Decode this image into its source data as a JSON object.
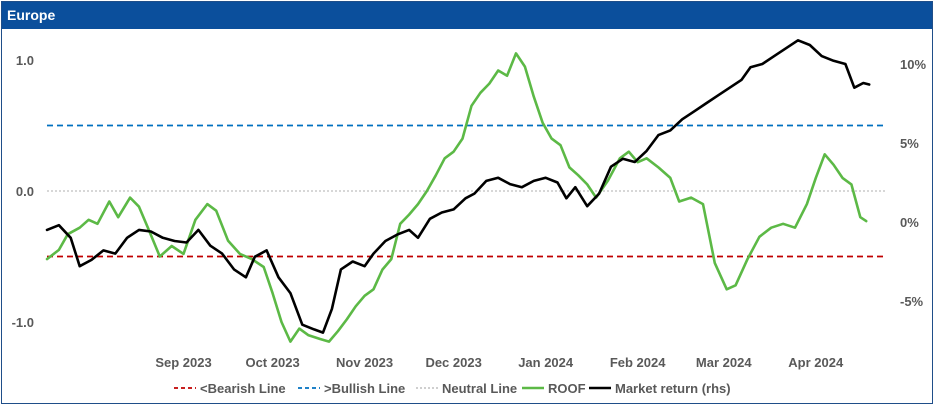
{
  "panel": {
    "title": "Europe"
  },
  "colors": {
    "title_bar": "#0b4f9c",
    "bearish": "#c00000",
    "bullish": "#0070c0",
    "neutral": "#bfbfbf",
    "roof": "#5cb946",
    "market": "#000000"
  },
  "chart_data": {
    "type": "line",
    "x_range": [
      "2023-08-01",
      "2024-05-10"
    ],
    "x_ticks": [
      "Sep 2023",
      "Oct 2023",
      "Nov 2023",
      "Dec 2023",
      "Jan 2024",
      "Feb 2024",
      "Mar 2024",
      "Apr 2024"
    ],
    "y_left": {
      "ticks": [
        "1.0",
        "0.0",
        "-1.0"
      ],
      "values": [
        1.0,
        0.0,
        -1.0
      ],
      "ylim": [
        -1.25,
        1.1
      ]
    },
    "y_right": {
      "ticks": [
        "10%",
        "5%",
        "0%",
        "-5%"
      ],
      "values": [
        10,
        5,
        0,
        -5
      ],
      "ylim": [
        -8.2,
        12.0
      ]
    },
    "reference_lines": [
      {
        "name": "<Bearish Line",
        "value": -0.5,
        "style": "dashed",
        "color": "#c00000"
      },
      {
        "name": ">Bullish Line",
        "value": 0.5,
        "style": "dashed",
        "color": "#0070c0"
      },
      {
        "name": "Neutral Line",
        "value": 0.0,
        "style": "dotted",
        "color": "#bfbfbf"
      }
    ],
    "series": [
      {
        "name": "ROOF",
        "axis": "left",
        "color": "#5cb946",
        "points": [
          [
            "2023-08-01",
            -0.52
          ],
          [
            "2023-08-05",
            -0.45
          ],
          [
            "2023-08-08",
            -0.33
          ],
          [
            "2023-08-12",
            -0.28
          ],
          [
            "2023-08-15",
            -0.22
          ],
          [
            "2023-08-18",
            -0.25
          ],
          [
            "2023-08-22",
            -0.08
          ],
          [
            "2023-08-25",
            -0.2
          ],
          [
            "2023-08-29",
            -0.05
          ],
          [
            "2023-09-01",
            -0.12
          ],
          [
            "2023-09-04",
            -0.28
          ],
          [
            "2023-09-08",
            -0.5
          ],
          [
            "2023-09-12",
            -0.42
          ],
          [
            "2023-09-16",
            -0.48
          ],
          [
            "2023-09-20",
            -0.22
          ],
          [
            "2023-09-24",
            -0.1
          ],
          [
            "2023-09-27",
            -0.15
          ],
          [
            "2023-10-01",
            -0.38
          ],
          [
            "2023-10-05",
            -0.48
          ],
          [
            "2023-10-09",
            -0.52
          ],
          [
            "2023-10-13",
            -0.58
          ],
          [
            "2023-10-16",
            -0.78
          ],
          [
            "2023-10-19",
            -1.0
          ],
          [
            "2023-10-22",
            -1.15
          ],
          [
            "2023-10-25",
            -1.05
          ],
          [
            "2023-10-28",
            -1.1
          ],
          [
            "2023-11-01",
            -1.13
          ],
          [
            "2023-11-04",
            -1.15
          ],
          [
            "2023-11-07",
            -1.07
          ],
          [
            "2023-11-10",
            -0.98
          ],
          [
            "2023-11-13",
            -0.88
          ],
          [
            "2023-11-16",
            -0.8
          ],
          [
            "2023-11-19",
            -0.75
          ],
          [
            "2023-11-22",
            -0.6
          ],
          [
            "2023-11-25",
            -0.52
          ],
          [
            "2023-11-28",
            -0.25
          ],
          [
            "2023-12-01",
            -0.18
          ],
          [
            "2023-12-04",
            -0.1
          ],
          [
            "2023-12-07",
            0.0
          ],
          [
            "2023-12-10",
            0.12
          ],
          [
            "2023-12-13",
            0.25
          ],
          [
            "2023-12-16",
            0.3
          ],
          [
            "2023-12-19",
            0.4
          ],
          [
            "2023-12-22",
            0.65
          ],
          [
            "2023-12-25",
            0.75
          ],
          [
            "2023-12-28",
            0.82
          ],
          [
            "2023-12-31",
            0.92
          ],
          [
            "2024-01-03",
            0.88
          ],
          [
            "2024-01-06",
            1.05
          ],
          [
            "2024-01-09",
            0.95
          ],
          [
            "2024-01-12",
            0.72
          ],
          [
            "2024-01-15",
            0.52
          ],
          [
            "2024-01-18",
            0.4
          ],
          [
            "2024-01-21",
            0.35
          ],
          [
            "2024-01-24",
            0.18
          ],
          [
            "2024-01-27",
            0.12
          ],
          [
            "2024-01-30",
            0.05
          ],
          [
            "2024-02-02",
            -0.05
          ],
          [
            "2024-02-06",
            0.08
          ],
          [
            "2024-02-10",
            0.25
          ],
          [
            "2024-02-13",
            0.3
          ],
          [
            "2024-02-16",
            0.22
          ],
          [
            "2024-02-19",
            0.25
          ],
          [
            "2024-02-23",
            0.18
          ],
          [
            "2024-02-27",
            0.1
          ],
          [
            "2024-03-01",
            -0.08
          ],
          [
            "2024-03-05",
            -0.05
          ],
          [
            "2024-03-09",
            -0.1
          ],
          [
            "2024-03-13",
            -0.55
          ],
          [
            "2024-03-17",
            -0.75
          ],
          [
            "2024-03-20",
            -0.72
          ],
          [
            "2024-03-24",
            -0.52
          ],
          [
            "2024-03-28",
            -0.35
          ],
          [
            "2024-04-01",
            -0.28
          ],
          [
            "2024-04-05",
            -0.25
          ],
          [
            "2024-04-09",
            -0.28
          ],
          [
            "2024-04-13",
            -0.1
          ],
          [
            "2024-04-16",
            0.1
          ],
          [
            "2024-04-19",
            0.28
          ],
          [
            "2024-04-22",
            0.2
          ],
          [
            "2024-04-25",
            0.1
          ],
          [
            "2024-04-28",
            0.05
          ],
          [
            "2024-05-01",
            -0.2
          ],
          [
            "2024-05-03",
            -0.23
          ]
        ]
      },
      {
        "name": "Market return (rhs)",
        "axis": "right",
        "color": "#000000",
        "points": [
          [
            "2023-08-01",
            -0.5
          ],
          [
            "2023-08-05",
            -0.2
          ],
          [
            "2023-08-09",
            -1.0
          ],
          [
            "2023-08-12",
            -2.8
          ],
          [
            "2023-08-16",
            -2.4
          ],
          [
            "2023-08-20",
            -1.8
          ],
          [
            "2023-08-24",
            -2.0
          ],
          [
            "2023-08-28",
            -1.0
          ],
          [
            "2023-09-01",
            -0.5
          ],
          [
            "2023-09-05",
            -0.6
          ],
          [
            "2023-09-09",
            -1.0
          ],
          [
            "2023-09-13",
            -1.2
          ],
          [
            "2023-09-17",
            -1.3
          ],
          [
            "2023-09-21",
            -0.5
          ],
          [
            "2023-09-25",
            -1.5
          ],
          [
            "2023-09-29",
            -2.0
          ],
          [
            "2023-10-03",
            -3.0
          ],
          [
            "2023-10-07",
            -3.5
          ],
          [
            "2023-10-10",
            -2.2
          ],
          [
            "2023-10-14",
            -1.8
          ],
          [
            "2023-10-18",
            -3.5
          ],
          [
            "2023-10-22",
            -4.5
          ],
          [
            "2023-10-26",
            -6.5
          ],
          [
            "2023-10-30",
            -6.8
          ],
          [
            "2023-11-02",
            -7.0
          ],
          [
            "2023-11-05",
            -5.5
          ],
          [
            "2023-11-08",
            -3.0
          ],
          [
            "2023-11-12",
            -2.5
          ],
          [
            "2023-11-16",
            -2.8
          ],
          [
            "2023-11-19",
            -2.0
          ],
          [
            "2023-11-23",
            -1.2
          ],
          [
            "2023-11-27",
            -0.8
          ],
          [
            "2023-12-01",
            -0.5
          ],
          [
            "2023-12-04",
            -1.0
          ],
          [
            "2023-12-08",
            0.2
          ],
          [
            "2023-12-12",
            0.6
          ],
          [
            "2023-12-16",
            0.8
          ],
          [
            "2023-12-20",
            1.5
          ],
          [
            "2023-12-23",
            1.8
          ],
          [
            "2023-12-27",
            2.6
          ],
          [
            "2023-12-31",
            2.8
          ],
          [
            "2024-01-04",
            2.4
          ],
          [
            "2024-01-08",
            2.2
          ],
          [
            "2024-01-12",
            2.6
          ],
          [
            "2024-01-16",
            2.8
          ],
          [
            "2024-01-20",
            2.5
          ],
          [
            "2024-01-23",
            1.5
          ],
          [
            "2024-01-26",
            2.2
          ],
          [
            "2024-01-30",
            1.0
          ],
          [
            "2024-02-03",
            1.8
          ],
          [
            "2024-02-07",
            3.5
          ],
          [
            "2024-02-11",
            4.0
          ],
          [
            "2024-02-15",
            3.8
          ],
          [
            "2024-02-19",
            4.5
          ],
          [
            "2024-02-23",
            5.5
          ],
          [
            "2024-02-27",
            5.8
          ],
          [
            "2024-03-02",
            6.5
          ],
          [
            "2024-03-06",
            7.0
          ],
          [
            "2024-03-10",
            7.5
          ],
          [
            "2024-03-14",
            8.0
          ],
          [
            "2024-03-18",
            8.5
          ],
          [
            "2024-03-22",
            9.0
          ],
          [
            "2024-03-25",
            9.8
          ],
          [
            "2024-03-29",
            10.0
          ],
          [
            "2024-04-02",
            10.5
          ],
          [
            "2024-04-06",
            11.0
          ],
          [
            "2024-04-10",
            11.5
          ],
          [
            "2024-04-14",
            11.2
          ],
          [
            "2024-04-18",
            10.5
          ],
          [
            "2024-04-22",
            10.2
          ],
          [
            "2024-04-26",
            10.0
          ],
          [
            "2024-04-29",
            8.5
          ],
          [
            "2024-05-02",
            8.8
          ],
          [
            "2024-05-04",
            8.7
          ]
        ]
      }
    ],
    "legend": {
      "position": "bottom",
      "items": [
        "<Bearish Line",
        ">Bullish Line",
        "Neutral Line",
        "ROOF",
        "Market return (rhs)"
      ]
    }
  }
}
